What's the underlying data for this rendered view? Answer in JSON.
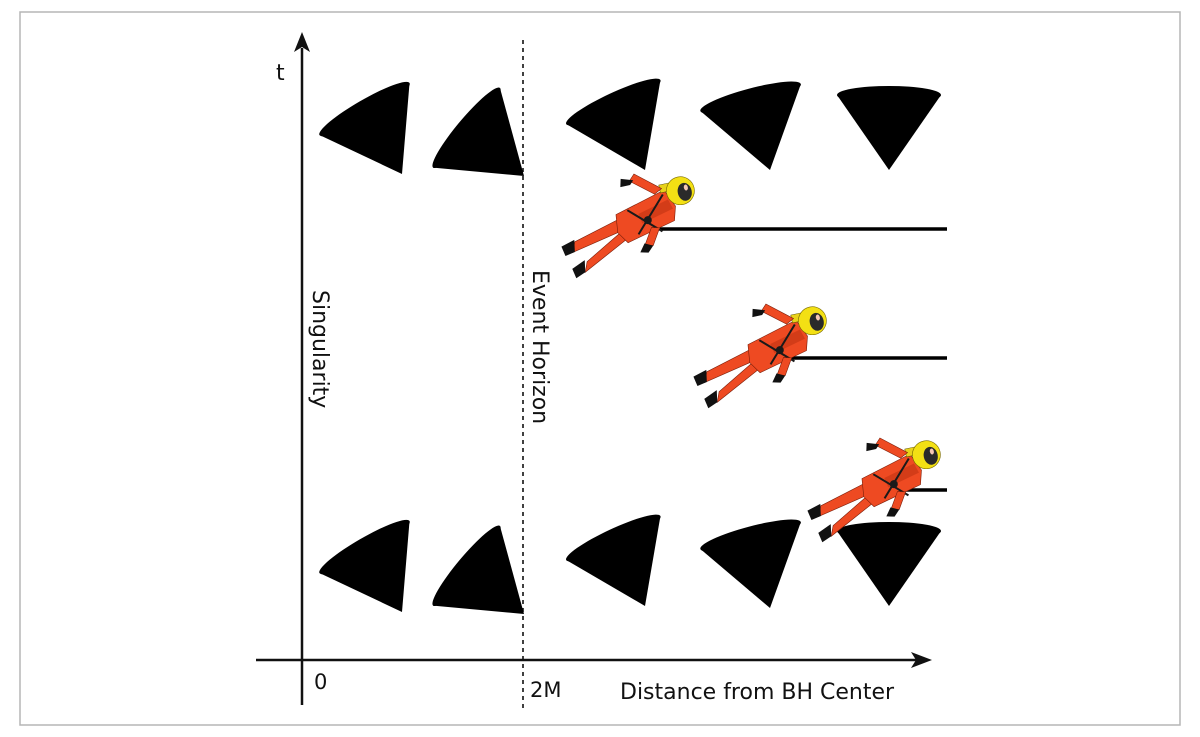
{
  "axes": {
    "y_label": "t",
    "x_label": "Distance from BH Center",
    "x_origin_label": "0",
    "x_horizon_label": "2M"
  },
  "labels": {
    "singularity": "Singularity",
    "event_horizon": "Event Horizon"
  },
  "colors": {
    "axis": "#111111",
    "frame": "#b5b5b5",
    "suit": "#ee4a22",
    "helmet": "#f3e014"
  },
  "icons": [
    "light-cone-icon",
    "astronaut-icon"
  ]
}
